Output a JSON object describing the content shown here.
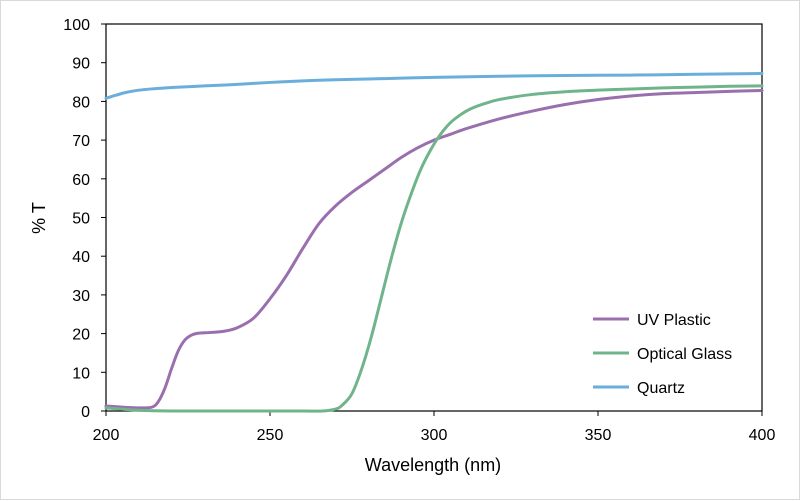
{
  "chart_data": {
    "type": "line",
    "title": "",
    "xlabel": "Wavelength (nm)",
    "ylabel": "% T",
    "xlim": [
      200,
      400
    ],
    "ylim": [
      0,
      100
    ],
    "x_ticks": [
      200,
      250,
      300,
      350,
      400
    ],
    "y_ticks": [
      0,
      10,
      20,
      30,
      40,
      50,
      60,
      70,
      80,
      90,
      100
    ],
    "grid": false,
    "legend_position": "bottom-right",
    "series": [
      {
        "name": "UV Plastic",
        "color": "#9a6fae",
        "points": [
          [
            200,
            1.3
          ],
          [
            205,
            1.0
          ],
          [
            210,
            0.8
          ],
          [
            214,
            1.0
          ],
          [
            216,
            2.5
          ],
          [
            218,
            6.0
          ],
          [
            220,
            11.0
          ],
          [
            222,
            15.5
          ],
          [
            224,
            18.3
          ],
          [
            226,
            19.6
          ],
          [
            228,
            20.1
          ],
          [
            232,
            20.3
          ],
          [
            236,
            20.6
          ],
          [
            240,
            21.5
          ],
          [
            245,
            24.0
          ],
          [
            250,
            29.0
          ],
          [
            255,
            35.0
          ],
          [
            260,
            42.0
          ],
          [
            265,
            48.5
          ],
          [
            270,
            53.0
          ],
          [
            275,
            56.5
          ],
          [
            280,
            59.5
          ],
          [
            285,
            62.5
          ],
          [
            290,
            65.5
          ],
          [
            295,
            68.0
          ],
          [
            300,
            70.0
          ],
          [
            305,
            71.5
          ],
          [
            310,
            73.0
          ],
          [
            320,
            75.5
          ],
          [
            330,
            77.5
          ],
          [
            340,
            79.2
          ],
          [
            350,
            80.5
          ],
          [
            360,
            81.4
          ],
          [
            370,
            82.0
          ],
          [
            380,
            82.3
          ],
          [
            390,
            82.6
          ],
          [
            400,
            82.8
          ]
        ]
      },
      {
        "name": "Optical Glass",
        "color": "#6fb48a",
        "points": [
          [
            200,
            0.8
          ],
          [
            210,
            0.2
          ],
          [
            220,
            0.0
          ],
          [
            240,
            0.0
          ],
          [
            260,
            0.0
          ],
          [
            266,
            0.0
          ],
          [
            270,
            0.5
          ],
          [
            272,
            1.5
          ],
          [
            275,
            4.5
          ],
          [
            278,
            11.0
          ],
          [
            281,
            19.5
          ],
          [
            284,
            29.5
          ],
          [
            287,
            39.5
          ],
          [
            290,
            48.5
          ],
          [
            293,
            56.0
          ],
          [
            296,
            62.5
          ],
          [
            299,
            67.5
          ],
          [
            302,
            71.5
          ],
          [
            305,
            74.5
          ],
          [
            308,
            76.5
          ],
          [
            311,
            78.0
          ],
          [
            315,
            79.3
          ],
          [
            320,
            80.5
          ],
          [
            330,
            81.8
          ],
          [
            340,
            82.5
          ],
          [
            350,
            82.9
          ],
          [
            360,
            83.2
          ],
          [
            370,
            83.5
          ],
          [
            380,
            83.7
          ],
          [
            390,
            83.9
          ],
          [
            400,
            84.0
          ]
        ]
      },
      {
        "name": "Quartz",
        "color": "#6aaedb",
        "points": [
          [
            200,
            80.8
          ],
          [
            203,
            81.6
          ],
          [
            206,
            82.3
          ],
          [
            210,
            82.9
          ],
          [
            215,
            83.3
          ],
          [
            220,
            83.6
          ],
          [
            230,
            84.0
          ],
          [
            240,
            84.4
          ],
          [
            250,
            84.9
          ],
          [
            260,
            85.3
          ],
          [
            270,
            85.6
          ],
          [
            280,
            85.8
          ],
          [
            290,
            86.0
          ],
          [
            300,
            86.2
          ],
          [
            320,
            86.5
          ],
          [
            340,
            86.7
          ],
          [
            360,
            86.8
          ],
          [
            380,
            87.0
          ],
          [
            390,
            87.1
          ],
          [
            400,
            87.2
          ]
        ]
      }
    ]
  }
}
